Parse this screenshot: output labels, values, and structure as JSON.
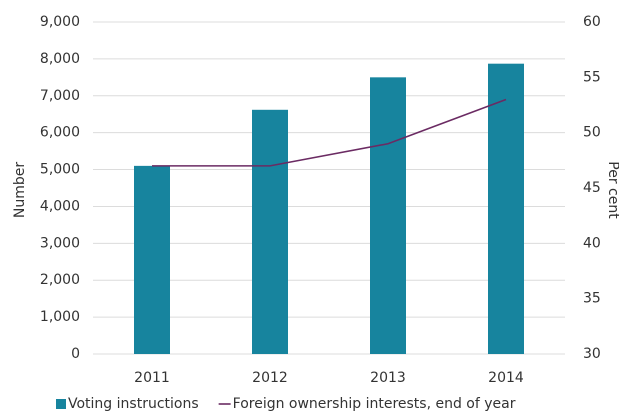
{
  "chart_data": {
    "type": "bar",
    "categories": [
      "2011",
      "2012",
      "2013",
      "2014"
    ],
    "series": [
      {
        "name": "Voting instructions",
        "type": "bar",
        "color": "#17849e",
        "values": [
          5100,
          6620,
          7500,
          7870
        ]
      },
      {
        "name": "Foreign ownership interests, end of year",
        "type": "line",
        "axis": "y2",
        "color": "#6b2b63",
        "values": [
          47,
          47,
          49,
          53
        ]
      }
    ],
    "ylabel": "Number",
    "y2label": "Per cent",
    "ylim": [
      0,
      9000
    ],
    "yticks": [
      0,
      {
        "value": 1000,
        "label": "1,000"
      },
      {
        "value": 2000,
        "label": "2,000"
      },
      {
        "value": 3000,
        "label": "3,000"
      },
      {
        "value": 4000,
        "label": "4,000"
      },
      {
        "value": 5000,
        "label": "5,000"
      },
      {
        "value": 6000,
        "label": "6,000"
      },
      {
        "value": 7000,
        "label": "7,000"
      },
      {
        "value": 8000,
        "label": "8,000"
      },
      {
        "value": 9000,
        "label": "9,000"
      }
    ],
    "y2lim": [
      30,
      60
    ],
    "y2ticks": [
      30,
      35,
      40,
      45,
      50,
      55,
      60
    ],
    "grid": true,
    "legend": "bottom"
  }
}
